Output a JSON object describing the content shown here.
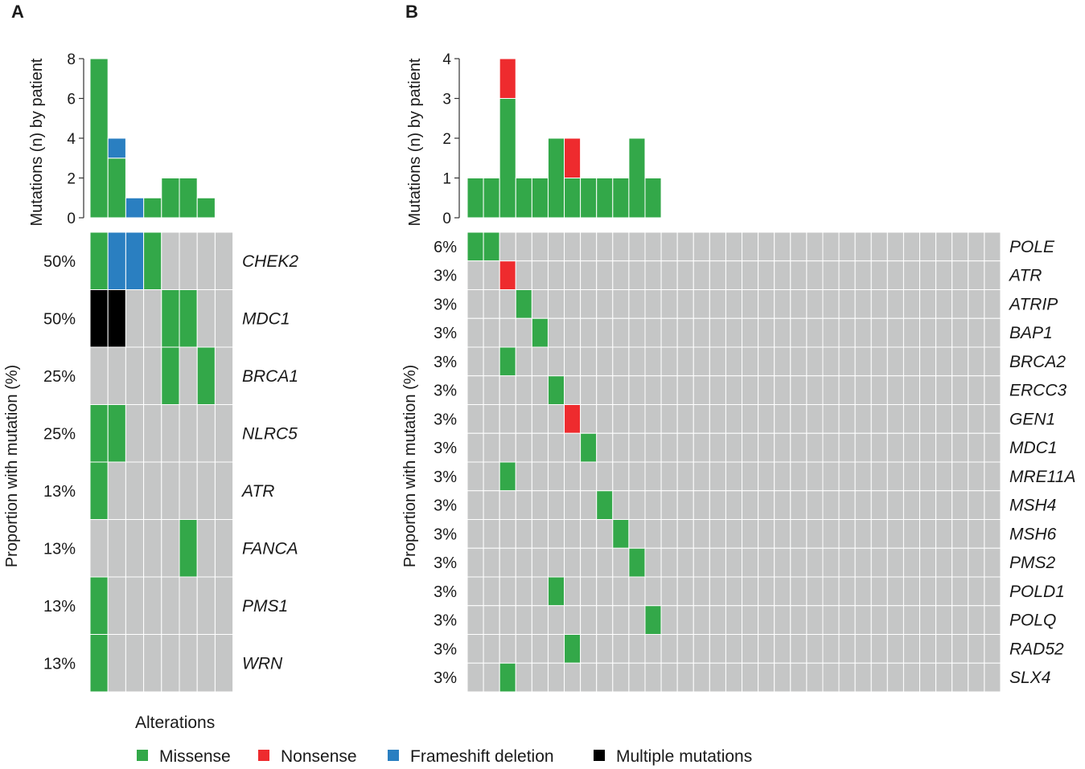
{
  "chart_data": [
    {
      "type": "heatmap",
      "panel": "A",
      "bar_ylabel": "Mutations (n) by patient",
      "grid_ylabel": "Proportion with mutation (%)",
      "bar_yticks": [
        "0",
        "2",
        "4",
        "6",
        "8"
      ],
      "bar_ylim": [
        0,
        8
      ],
      "num_samples": 8,
      "bar_series": [
        {
          "name": "Missense",
          "values": [
            8,
            3,
            0,
            1,
            2,
            2,
            1,
            0
          ]
        },
        {
          "name": "Frameshift deletion",
          "values": [
            0,
            1,
            1,
            0,
            0,
            0,
            0,
            0
          ]
        }
      ],
      "rows": [
        {
          "gene": "CHEK2",
          "pct": "50%",
          "cells": [
            "M",
            "F",
            "F",
            "M",
            "",
            "",
            "",
            ""
          ]
        },
        {
          "gene": "MDC1",
          "pct": "50%",
          "cells": [
            "X",
            "X",
            "",
            "",
            "M",
            "M",
            "",
            ""
          ]
        },
        {
          "gene": "BRCA1",
          "pct": "25%",
          "cells": [
            "",
            "",
            "",
            "",
            "M",
            "",
            "M",
            ""
          ]
        },
        {
          "gene": "NLRC5",
          "pct": "25%",
          "cells": [
            "M",
            "M",
            "",
            "",
            "",
            "",
            "",
            ""
          ]
        },
        {
          "gene": "ATR",
          "pct": "13%",
          "cells": [
            "M",
            "",
            "",
            "",
            "",
            "",
            "",
            ""
          ]
        },
        {
          "gene": "FANCA",
          "pct": "13%",
          "cells": [
            "",
            "",
            "",
            "",
            "",
            "M",
            "",
            ""
          ]
        },
        {
          "gene": "PMS1",
          "pct": "13%",
          "cells": [
            "M",
            "",
            "",
            "",
            "",
            "",
            "",
            ""
          ]
        },
        {
          "gene": "WRN",
          "pct": "13%",
          "cells": [
            "M",
            "",
            "",
            "",
            "",
            "",
            "",
            ""
          ]
        }
      ]
    },
    {
      "type": "heatmap",
      "panel": "B",
      "bar_ylabel": "Mutations (n) by patient",
      "grid_ylabel": "Proportion with mutation (%)",
      "bar_yticks": [
        "0",
        "1",
        "2",
        "3",
        "4"
      ],
      "bar_ylim": [
        0,
        4
      ],
      "num_samples": 33,
      "bar_series": [
        {
          "name": "Missense",
          "values": [
            1,
            1,
            3,
            1,
            1,
            2,
            1,
            1,
            1,
            1,
            2,
            1
          ]
        },
        {
          "name": "Nonsense",
          "values": [
            0,
            0,
            1,
            0,
            0,
            0,
            1,
            0,
            0,
            0,
            0,
            0
          ]
        }
      ],
      "rows": [
        {
          "gene": "POLE",
          "pct": "6%",
          "cells": [
            "M",
            "M"
          ]
        },
        {
          "gene": "ATR",
          "pct": "3%",
          "cells": [
            "",
            "",
            "N"
          ]
        },
        {
          "gene": "ATRIP",
          "pct": "3%",
          "cells": [
            "",
            "",
            "",
            "M"
          ]
        },
        {
          "gene": "BAP1",
          "pct": "3%",
          "cells": [
            "",
            "",
            "",
            "",
            "M"
          ]
        },
        {
          "gene": "BRCA2",
          "pct": "3%",
          "cells": [
            "",
            "",
            "M"
          ]
        },
        {
          "gene": "ERCC3",
          "pct": "3%",
          "cells": [
            "",
            "",
            "",
            "",
            "",
            "M"
          ]
        },
        {
          "gene": "GEN1",
          "pct": "3%",
          "cells": [
            "",
            "",
            "",
            "",
            "",
            "",
            "N"
          ]
        },
        {
          "gene": "MDC1",
          "pct": "3%",
          "cells": [
            "",
            "",
            "",
            "",
            "",
            "",
            "",
            "M"
          ]
        },
        {
          "gene": "MRE11A",
          "pct": "3%",
          "cells": [
            "",
            "",
            "M"
          ]
        },
        {
          "gene": "MSH4",
          "pct": "3%",
          "cells": [
            "",
            "",
            "",
            "",
            "",
            "",
            "",
            "",
            "M"
          ]
        },
        {
          "gene": "MSH6",
          "pct": "3%",
          "cells": [
            "",
            "",
            "",
            "",
            "",
            "",
            "",
            "",
            "",
            "M"
          ]
        },
        {
          "gene": "PMS2",
          "pct": "3%",
          "cells": [
            "",
            "",
            "",
            "",
            "",
            "",
            "",
            "",
            "",
            "",
            "M"
          ]
        },
        {
          "gene": "POLD1",
          "pct": "3%",
          "cells": [
            "",
            "",
            "",
            "",
            "",
            "M"
          ]
        },
        {
          "gene": "POLQ",
          "pct": "3%",
          "cells": [
            "",
            "",
            "",
            "",
            "",
            "",
            "",
            "",
            "",
            "",
            "",
            "M"
          ]
        },
        {
          "gene": "RAD52",
          "pct": "3%",
          "cells": [
            "",
            "",
            "",
            "",
            "",
            "",
            "M"
          ]
        },
        {
          "gene": "SLX4",
          "pct": "3%",
          "cells": [
            "",
            "",
            "M"
          ]
        }
      ]
    }
  ],
  "legend": {
    "title": "Alterations",
    "items": [
      {
        "key": "M",
        "label": "Missense",
        "color": "#33a849"
      },
      {
        "key": "N",
        "label": "Nonsense",
        "color": "#ee2b2e"
      },
      {
        "key": "F",
        "label": "Frameshift deletion",
        "color": "#2a7fc1"
      },
      {
        "key": "X",
        "label": "Multiple mutations",
        "color": "#000000"
      }
    ]
  },
  "colors": {
    "empty_cell": "#c5c6c6",
    "gridline": "#ffffff",
    "axis": "#333333"
  }
}
